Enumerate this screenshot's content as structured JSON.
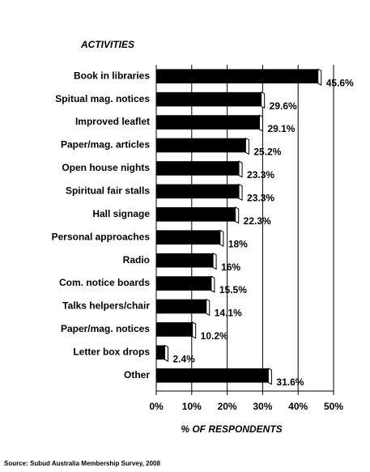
{
  "chart_data": {
    "type": "bar",
    "orientation": "horizontal",
    "y_label": "ACTIVITIES",
    "x_label": "% OF RESPONDENTS",
    "source": "Source: Subud Australia Membership Survey, 2008",
    "categories": [
      "Book in libraries",
      "Spitual mag. notices",
      "Improved leaflet",
      "Paper/mag. articles",
      "Open house nights",
      "Spiritual fair stalls",
      "Hall signage",
      "Personal approaches",
      "Radio",
      "Com. notice boards",
      "Talks helpers/chair",
      "Paper/mag. notices",
      "Letter box drops",
      "Other"
    ],
    "values": [
      45.6,
      29.6,
      29.1,
      25.2,
      23.3,
      23.3,
      22.3,
      18,
      16,
      15.5,
      14.1,
      10.2,
      2.4,
      31.6
    ],
    "value_labels": [
      "45.6%",
      "29.6%",
      "29.1%",
      "25.2%",
      "23.3%",
      "23.3%",
      "22.3%",
      "18%",
      "16%",
      "15.5%",
      "14.1%",
      "10.2%",
      "2.4%",
      "31.6%"
    ],
    "color": "#000000",
    "xlim": [
      0,
      50
    ],
    "xticks": [
      {
        "value": 0,
        "label": "0%"
      },
      {
        "value": 10,
        "label": "10%"
      },
      {
        "value": 20,
        "label": "20%"
      },
      {
        "value": 30,
        "label": "30%"
      },
      {
        "value": 40,
        "label": "40%"
      },
      {
        "value": 50,
        "label": "50%"
      }
    ],
    "grid": true
  }
}
